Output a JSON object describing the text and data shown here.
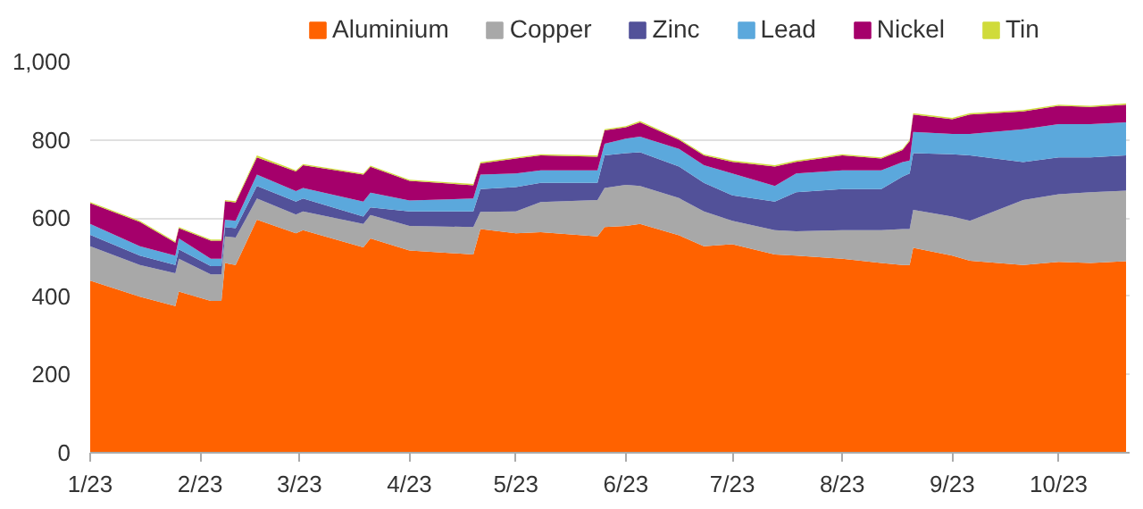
{
  "chart_data": {
    "type": "area",
    "stacked": true,
    "legend": "top",
    "grid": "y",
    "x": [
      "2023-01-01",
      "2023-01-15",
      "2023-01-25",
      "2023-01-26",
      "2023-02-04",
      "2023-02-07",
      "2023-02-08",
      "2023-02-11",
      "2023-02-17",
      "2023-02-28",
      "2023-03-02",
      "2023-03-19",
      "2023-03-21",
      "2023-04-01",
      "2023-04-19",
      "2023-04-21",
      "2023-05-01",
      "2023-05-08",
      "2023-05-24",
      "2023-05-26",
      "2023-06-01",
      "2023-06-05",
      "2023-06-16",
      "2023-06-23",
      "2023-07-01",
      "2023-07-13",
      "2023-07-19",
      "2023-08-01",
      "2023-08-12",
      "2023-08-18",
      "2023-08-20",
      "2023-08-21",
      "2023-09-01",
      "2023-09-06",
      "2023-09-21",
      "2023-10-01",
      "2023-10-10",
      "2023-10-20"
    ],
    "series": [
      {
        "name": "Aluminium",
        "color": "#ff6200",
        "values": [
          440,
          399,
          375,
          412,
          388,
          388,
          485,
          480,
          596,
          561,
          569,
          525,
          548,
          517,
          507,
          572,
          561,
          564,
          553,
          577,
          580,
          585,
          556,
          528,
          533,
          507,
          504,
          496,
          485,
          480,
          480,
          524,
          504,
          491,
          480,
          488,
          485,
          490
        ]
      },
      {
        "name": "Copper",
        "color": "#a8a8a8",
        "values": [
          88,
          81,
          84,
          84,
          68,
          68,
          68,
          70,
          54,
          48,
          48,
          60,
          60,
          63,
          70,
          44,
          56,
          77,
          93,
          100,
          105,
          97,
          95,
          89,
          60,
          62,
          62,
          73,
          84,
          92,
          92,
          97,
          100,
          102,
          166,
          173,
          181,
          180
        ]
      },
      {
        "name": "Zinc",
        "color": "#525199",
        "values": [
          29,
          24,
          21,
          24,
          21,
          21,
          24,
          24,
          32,
          33,
          33,
          19,
          19,
          37,
          40,
          58,
          62,
          49,
          44,
          83,
          81,
          86,
          81,
          73,
          65,
          73,
          100,
          105,
          105,
          134,
          142,
          145,
          159,
          167,
          97,
          94,
          89,
          90
        ]
      },
      {
        "name": "Lead",
        "color": "#5ba8dc",
        "values": [
          28,
          24,
          24,
          28,
          19,
          19,
          19,
          19,
          29,
          27,
          27,
          38,
          38,
          28,
          33,
          37,
          35,
          32,
          32,
          30,
          37,
          40,
          45,
          45,
          56,
          40,
          48,
          48,
          48,
          37,
          33,
          54,
          52,
          55,
          84,
          85,
          85,
          85
        ]
      },
      {
        "name": "Nickel",
        "color": "#a5006b",
        "values": [
          53,
          62,
          33,
          26,
          46,
          46,
          47,
          47,
          44,
          50,
          58,
          69,
          66,
          50,
          34,
          29,
          38,
          38,
          35,
          34,
          29,
          37,
          23,
          25,
          30,
          50,
          30,
          38,
          30,
          31,
          50,
          45,
          38,
          50,
          46,
          47,
          44,
          45
        ]
      },
      {
        "name": "Tin",
        "color": "#d0db3b",
        "values": [
          3,
          3,
          3,
          3,
          3,
          3,
          3,
          3,
          5,
          3,
          3,
          3,
          3,
          3,
          3,
          3,
          3,
          3,
          3,
          3,
          3,
          3,
          3,
          3,
          3,
          3,
          3,
          3,
          3,
          3,
          3,
          3,
          3,
          3,
          3,
          3,
          3,
          3
        ]
      }
    ],
    "xlim": [
      "2023-01-01",
      "2023-10-21"
    ],
    "xticks": [
      {
        "value": "2023-01-01",
        "label": "1/23"
      },
      {
        "value": "2023-02-01",
        "label": "2/23"
      },
      {
        "value": "2023-03-01",
        "label": "3/23"
      },
      {
        "value": "2023-04-01",
        "label": "4/23"
      },
      {
        "value": "2023-05-01",
        "label": "5/23"
      },
      {
        "value": "2023-06-01",
        "label": "6/23"
      },
      {
        "value": "2023-07-01",
        "label": "7/23"
      },
      {
        "value": "2023-08-01",
        "label": "8/23"
      },
      {
        "value": "2023-09-01",
        "label": "9/23"
      },
      {
        "value": "2023-10-01",
        "label": "10/23"
      }
    ],
    "ylim": [
      0,
      1000
    ],
    "yticks": [
      0,
      200,
      400,
      600,
      800,
      {
        "value": 1000,
        "label": "1,000"
      }
    ]
  }
}
